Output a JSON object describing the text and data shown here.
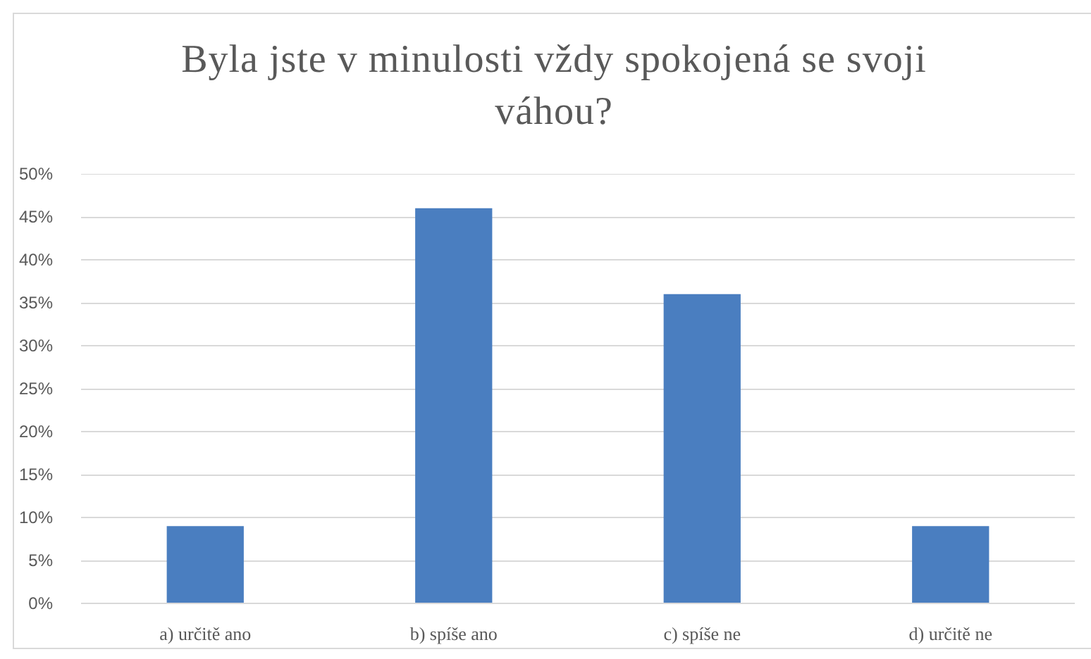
{
  "chart_data": {
    "type": "bar",
    "title": "Byla jste v minulosti vždy spokojená se svoji váhou?",
    "categories": [
      "a) určitě ano",
      "b) spíše ano",
      "c) spíše ne",
      "d) určitě ne"
    ],
    "values": [
      9,
      46,
      36,
      9
    ],
    "color": "#4a7ec0",
    "ylim": [
      0,
      50
    ],
    "yticks": [
      {
        "value": 0,
        "label": "0%"
      },
      {
        "value": 5,
        "label": "5%"
      },
      {
        "value": 10,
        "label": "10%"
      },
      {
        "value": 15,
        "label": "15%"
      },
      {
        "value": 20,
        "label": "20%"
      },
      {
        "value": 25,
        "label": "25%"
      },
      {
        "value": 30,
        "label": "30%"
      },
      {
        "value": 35,
        "label": "35%"
      },
      {
        "value": 40,
        "label": "40%"
      },
      {
        "value": 45,
        "label": "45%"
      },
      {
        "value": 50,
        "label": "50%"
      }
    ],
    "grid": "y"
  }
}
